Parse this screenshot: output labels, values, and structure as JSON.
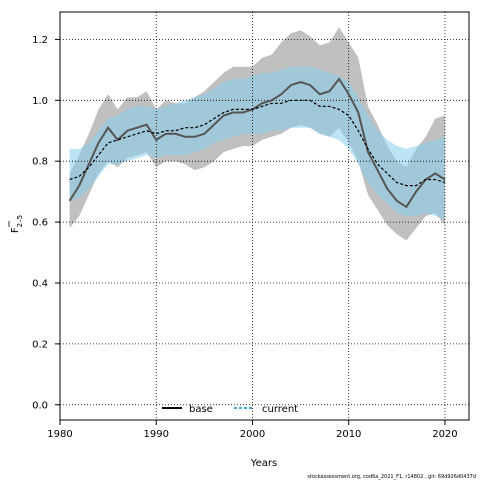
{
  "chart_data": {
    "type": "line",
    "xlabel": "Years",
    "ylabel_main": "F",
    "ylabel_sub": "2–5",
    "xlim": [
      1980,
      2022.5
    ],
    "ylim": [
      -0.05,
      1.29
    ],
    "xticks": [
      1980,
      1990,
      2000,
      2010,
      2020
    ],
    "yticks": [
      0.0,
      0.2,
      0.4,
      0.6,
      0.8,
      1.0,
      1.2
    ],
    "ytick_labels": [
      "0.0",
      "0.2",
      "0.4",
      "0.6",
      "0.8",
      "1.0",
      "1.2"
    ],
    "grid": true,
    "legend_position": "bottom-center",
    "x": [
      1981,
      1982,
      1983,
      1984,
      1985,
      1986,
      1987,
      1988,
      1989,
      1990,
      1991,
      1992,
      1993,
      1994,
      1995,
      1996,
      1997,
      1998,
      1999,
      2000,
      2001,
      2002,
      2003,
      2004,
      2005,
      2006,
      2007,
      2008,
      2009,
      2010,
      2011,
      2012,
      2013,
      2014,
      2015,
      2016,
      2017,
      2018,
      2019,
      2020
    ],
    "series": [
      {
        "name": "base",
        "color": "#555555",
        "band_color": "#bdbdbd",
        "dash": "solid",
        "values": [
          0.67,
          0.72,
          0.79,
          0.86,
          0.91,
          0.87,
          0.9,
          0.91,
          0.92,
          0.87,
          0.89,
          0.89,
          0.88,
          0.88,
          0.89,
          0.92,
          0.95,
          0.96,
          0.96,
          0.97,
          0.99,
          1.0,
          1.02,
          1.05,
          1.06,
          1.05,
          1.02,
          1.03,
          1.07,
          1.02,
          0.96,
          0.83,
          0.77,
          0.71,
          0.67,
          0.65,
          0.7,
          0.74,
          0.76,
          0.74
        ],
        "lower": [
          0.58,
          0.62,
          0.69,
          0.76,
          0.8,
          0.78,
          0.81,
          0.82,
          0.83,
          0.78,
          0.8,
          0.8,
          0.79,
          0.77,
          0.78,
          0.8,
          0.83,
          0.84,
          0.85,
          0.85,
          0.87,
          0.88,
          0.89,
          0.91,
          0.92,
          0.91,
          0.89,
          0.88,
          0.91,
          0.86,
          0.8,
          0.69,
          0.64,
          0.59,
          0.56,
          0.54,
          0.58,
          0.62,
          0.63,
          0.59
        ],
        "upper": [
          0.76,
          0.82,
          0.89,
          0.97,
          1.02,
          0.97,
          1.01,
          1.01,
          1.03,
          0.97,
          1.0,
          0.99,
          0.99,
          1.01,
          1.03,
          1.06,
          1.09,
          1.11,
          1.11,
          1.11,
          1.14,
          1.15,
          1.19,
          1.22,
          1.23,
          1.21,
          1.18,
          1.19,
          1.24,
          1.19,
          1.14,
          0.98,
          0.92,
          0.85,
          0.8,
          0.78,
          0.84,
          0.88,
          0.94,
          0.95
        ]
      },
      {
        "name": "current",
        "color": "#000000",
        "band_color": "#87ceeb",
        "dash": "dashed",
        "values": [
          0.74,
          0.75,
          0.78,
          0.82,
          0.86,
          0.87,
          0.88,
          0.89,
          0.9,
          0.89,
          0.9,
          0.9,
          0.91,
          0.91,
          0.92,
          0.94,
          0.96,
          0.97,
          0.97,
          0.97,
          0.98,
          0.99,
          0.99,
          1.0,
          1.0,
          1.0,
          0.98,
          0.98,
          0.97,
          0.95,
          0.9,
          0.84,
          0.79,
          0.76,
          0.73,
          0.72,
          0.72,
          0.74,
          0.74,
          0.73
        ],
        "lower": [
          0.67,
          0.68,
          0.71,
          0.75,
          0.79,
          0.79,
          0.8,
          0.81,
          0.82,
          0.81,
          0.82,
          0.82,
          0.82,
          0.83,
          0.84,
          0.86,
          0.87,
          0.88,
          0.89,
          0.89,
          0.89,
          0.9,
          0.9,
          0.91,
          0.91,
          0.91,
          0.89,
          0.88,
          0.87,
          0.84,
          0.79,
          0.73,
          0.69,
          0.66,
          0.63,
          0.62,
          0.62,
          0.63,
          0.62,
          0.61
        ],
        "upper": [
          0.84,
          0.84,
          0.86,
          0.9,
          0.94,
          0.95,
          0.97,
          0.98,
          0.98,
          0.97,
          0.98,
          0.99,
          1.0,
          1.01,
          1.02,
          1.04,
          1.06,
          1.07,
          1.07,
          1.08,
          1.09,
          1.09,
          1.1,
          1.11,
          1.11,
          1.11,
          1.1,
          1.09,
          1.08,
          1.06,
          1.01,
          0.95,
          0.9,
          0.87,
          0.85,
          0.84,
          0.85,
          0.86,
          0.87,
          0.88
        ]
      }
    ],
    "footer_text": "stockassessment.org, cod6a_2021_F1, r14802 , git: 69d926d0437d"
  }
}
